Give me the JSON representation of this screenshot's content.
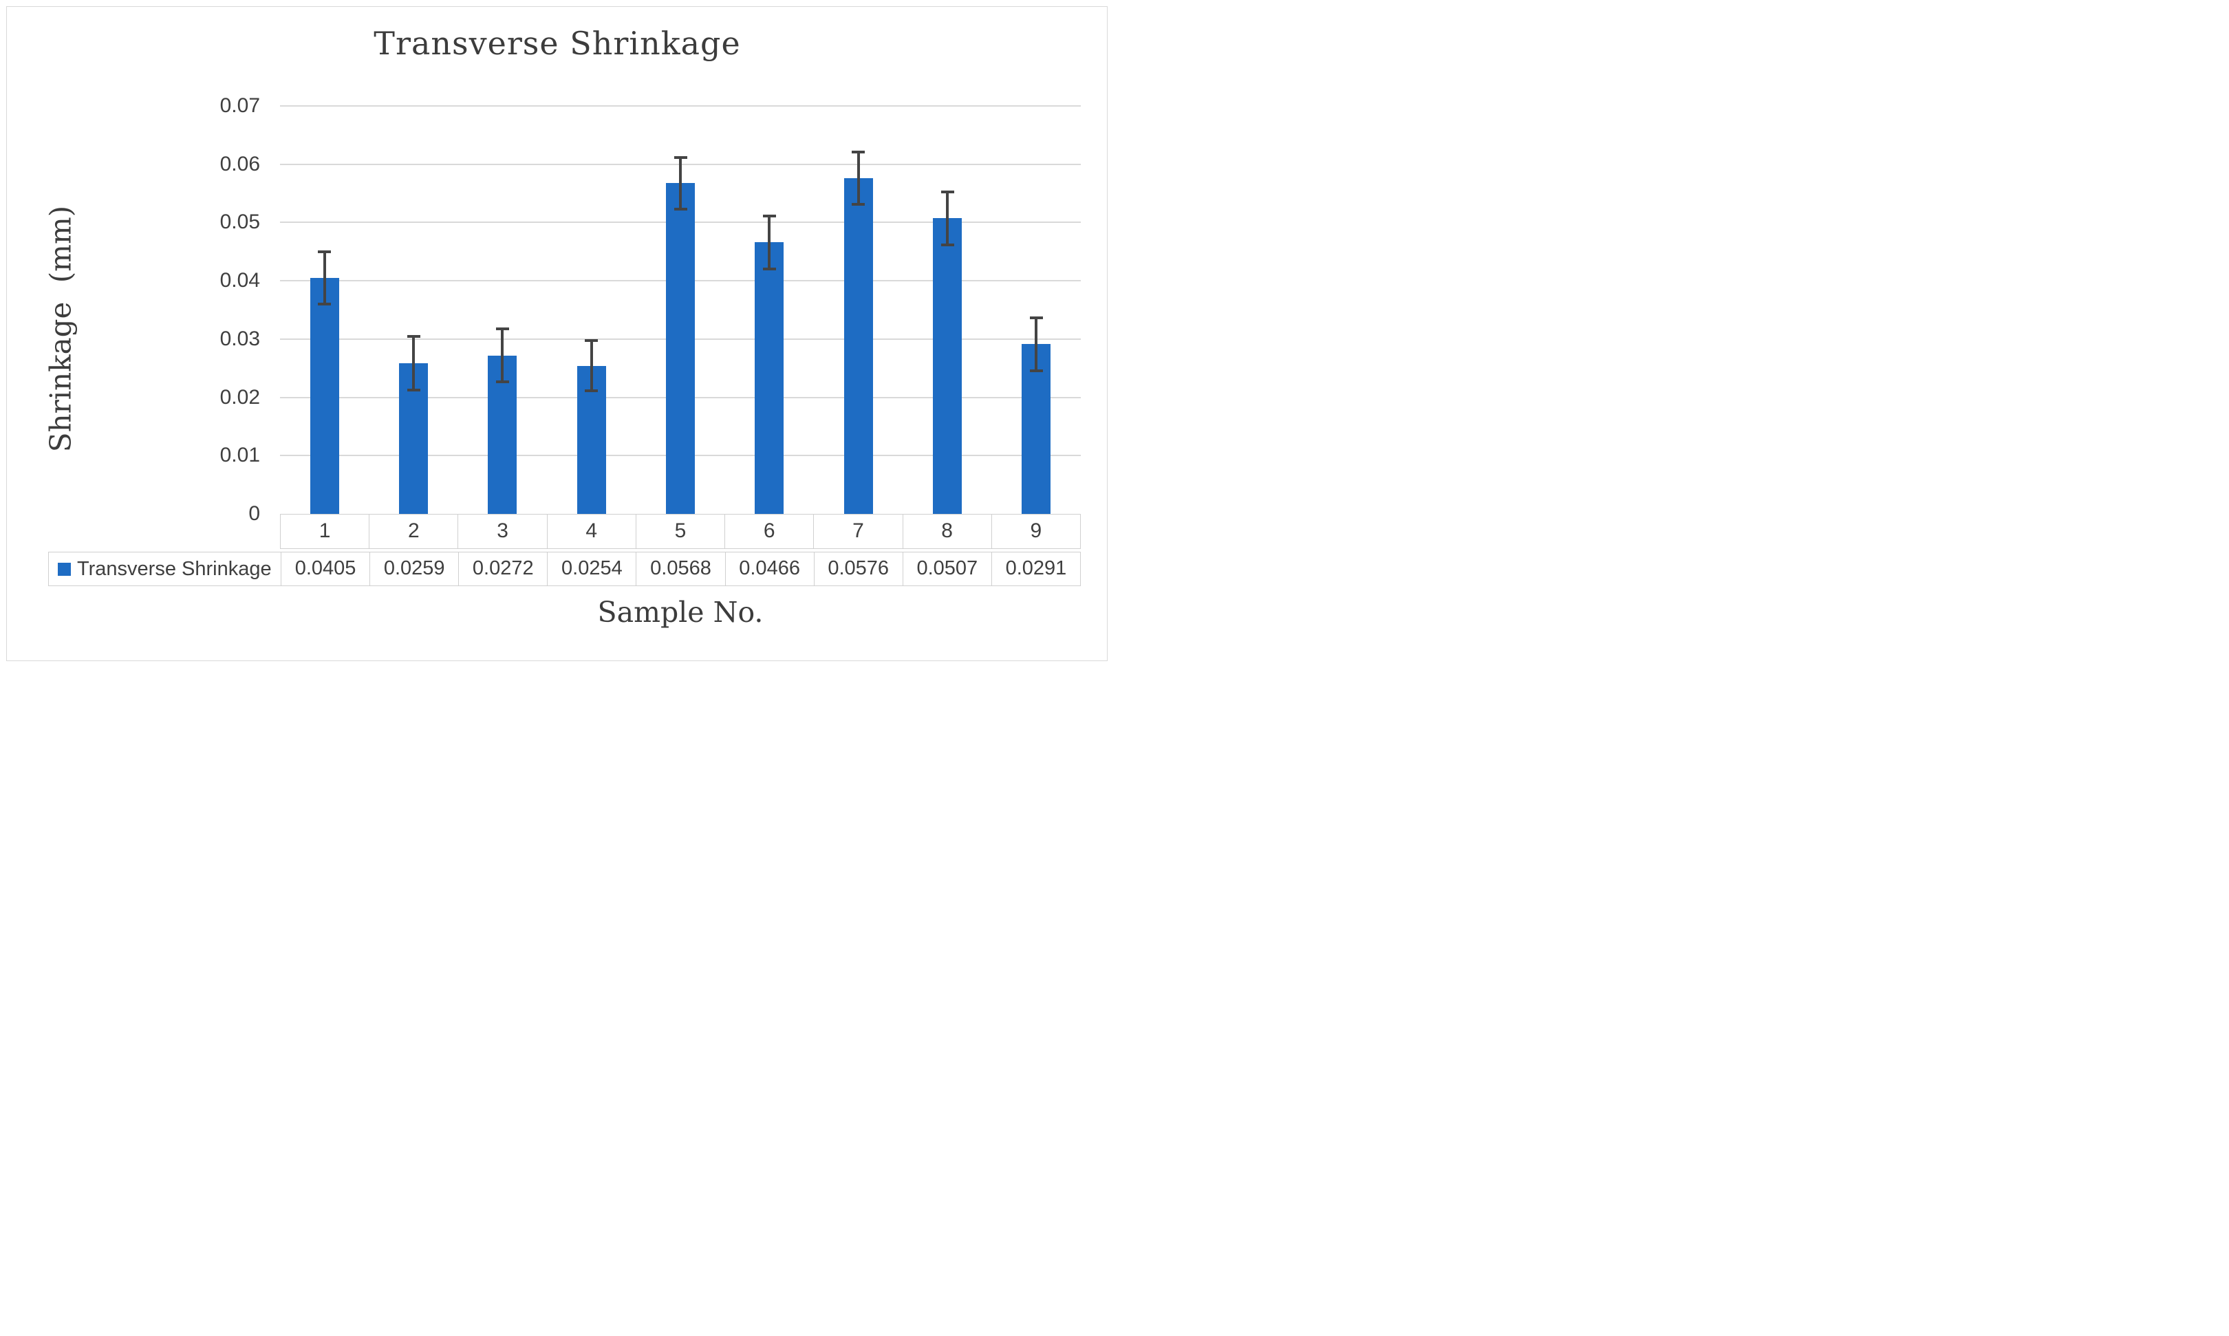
{
  "figure": {
    "title": "Transverse Shrinkage",
    "y_axis_title": "Shrinkage (mm)",
    "x_axis_title": "Sample No.",
    "legend_label": "Transverse Shrinkage"
  },
  "chart_data": {
    "type": "bar",
    "title": "Transverse Shrinkage",
    "xlabel": "Sample No.",
    "ylabel": "Shrinkage (mm)",
    "categories": [
      "1",
      "2",
      "3",
      "4",
      "5",
      "6",
      "7",
      "8",
      "9"
    ],
    "series": [
      {
        "name": "Transverse Shrinkage",
        "values": [
          0.0405,
          0.0259,
          0.0272,
          0.0254,
          0.0568,
          0.0466,
          0.0576,
          0.0507,
          0.0291
        ],
        "error_plus": [
          0.0045,
          0.0046,
          0.0046,
          0.0044,
          0.0044,
          0.0045,
          0.0045,
          0.0045,
          0.0046
        ],
        "error_minus": [
          0.0045,
          0.0046,
          0.0045,
          0.0043,
          0.0045,
          0.0046,
          0.0045,
          0.0046,
          0.0045
        ]
      }
    ],
    "table_values": [
      "0.0405",
      "0.0259",
      "0.0272",
      "0.0254",
      "0.0568",
      "0.0466",
      "0.0576",
      "0.0507",
      "0.0291"
    ],
    "ylim": [
      0,
      0.07
    ],
    "ytick_step": 0.01,
    "ytick_labels": [
      "0.07",
      "0.06",
      "0.05",
      "0.04",
      "0.03",
      "0.02",
      "0.01",
      "0"
    ],
    "grid": true,
    "legend_position": "bottom-data-table",
    "colors": {
      "bar": "#1e6cc3",
      "error_bar": "#444444",
      "gridline": "#d9d9d9",
      "table_border": "#d0d0d0",
      "text": "#3f3f3f"
    }
  }
}
